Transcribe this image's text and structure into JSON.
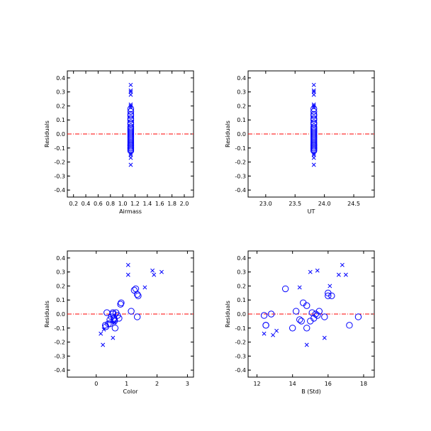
{
  "chart_data": [
    {
      "type": "scatter",
      "xlabel": "Airmass",
      "ylabel": "Residuals",
      "xlim": [
        0.1,
        2.15
      ],
      "ylim": [
        -0.45,
        0.45
      ],
      "xticks": [
        "0.2",
        "0.4",
        "0.6",
        "0.8",
        "1.0",
        "1.2",
        "1.4",
        "1.6",
        "1.8",
        "2.0"
      ],
      "yticks": [
        "0.4",
        "0.3",
        "0.2",
        "0.1",
        "0.0",
        "-0.1",
        "-0.2",
        "-0.3",
        "-0.4"
      ],
      "reference_line": {
        "y": 0.0,
        "color": "#ff0000",
        "style": "dash-dot"
      },
      "series": [
        {
          "marker": "circle",
          "x": [
            1.13,
            1.13,
            1.13,
            1.13,
            1.13,
            1.13,
            1.13,
            1.13,
            1.13,
            1.13,
            1.13,
            1.13,
            1.13,
            1.13,
            1.13,
            1.13,
            1.13,
            1.13,
            1.13,
            1.13,
            1.13,
            1.13,
            1.13,
            1.13,
            1.13,
            1.13,
            1.13,
            1.13
          ],
          "y": [
            0.18,
            0.16,
            0.14,
            0.13,
            0.1,
            0.08,
            0.07,
            0.03,
            0.02,
            0.01,
            0.0,
            -0.01,
            -0.02,
            -0.03,
            -0.04,
            -0.05,
            -0.07,
            -0.08,
            -0.08,
            -0.09,
            -0.1,
            -0.1,
            -0.11,
            -0.12,
            0.05,
            0.04,
            -0.06,
            0.11
          ]
        },
        {
          "marker": "cross",
          "x": [
            1.13,
            1.13,
            1.13,
            1.13,
            1.13,
            1.13,
            1.13,
            1.13,
            1.13,
            1.13,
            1.13
          ],
          "y": [
            0.35,
            0.31,
            0.3,
            0.28,
            0.21,
            0.19,
            -0.14,
            -0.15,
            -0.17,
            -0.22,
            0.2
          ]
        }
      ]
    },
    {
      "type": "scatter",
      "xlabel": "UT",
      "ylabel": "Residuals",
      "xlim": [
        22.7,
        24.85
      ],
      "ylim": [
        -0.45,
        0.45
      ],
      "xticks": [
        "23.0",
        "23.5",
        "24.0",
        "24.5"
      ],
      "yticks": [
        "0.4",
        "0.3",
        "0.2",
        "0.1",
        "0.0",
        "-0.1",
        "-0.2",
        "-0.3",
        "-0.4"
      ],
      "reference_line": {
        "y": 0.0,
        "color": "#ff0000",
        "style": "dash-dot"
      },
      "series": [
        {
          "marker": "circle",
          "x": [
            23.82,
            23.82,
            23.82,
            23.82,
            23.82,
            23.82,
            23.82,
            23.82,
            23.82,
            23.82,
            23.82,
            23.82,
            23.82,
            23.82,
            23.82,
            23.82,
            23.82,
            23.82,
            23.82,
            23.82,
            23.82,
            23.82,
            23.82,
            23.82,
            23.82,
            23.82,
            23.82,
            23.82
          ],
          "y": [
            0.18,
            0.16,
            0.14,
            0.13,
            0.1,
            0.08,
            0.07,
            0.03,
            0.02,
            0.01,
            0.0,
            -0.01,
            -0.02,
            -0.03,
            -0.04,
            -0.05,
            -0.07,
            -0.08,
            -0.08,
            -0.09,
            -0.1,
            -0.1,
            -0.11,
            -0.12,
            0.05,
            0.04,
            -0.06,
            0.11
          ]
        },
        {
          "marker": "cross",
          "x": [
            23.82,
            23.82,
            23.82,
            23.82,
            23.82,
            23.82,
            23.82,
            23.82,
            23.82,
            23.82,
            23.82
          ],
          "y": [
            0.35,
            0.31,
            0.3,
            0.28,
            0.21,
            0.19,
            -0.14,
            -0.15,
            -0.17,
            -0.22,
            0.2
          ]
        }
      ]
    },
    {
      "type": "scatter",
      "xlabel": "Color",
      "ylabel": "Residuals",
      "xlim": [
        -0.95,
        3.2
      ],
      "ylim": [
        -0.45,
        0.45
      ],
      "xticks": [
        "0",
        "1",
        "2",
        "3"
      ],
      "yticks": [
        "0.4",
        "0.3",
        "0.2",
        "0.1",
        "0.0",
        "-0.1",
        "-0.2",
        "-0.3",
        "-0.4"
      ],
      "reference_line": {
        "y": 0.0,
        "color": "#ff0000",
        "style": "dash-dot"
      },
      "series": [
        {
          "marker": "circle",
          "x": [
            0.35,
            0.3,
            0.32,
            0.4,
            0.45,
            0.5,
            0.55,
            0.58,
            0.6,
            0.62,
            0.65,
            0.7,
            0.75,
            0.8,
            0.82,
            1.15,
            1.25,
            1.3,
            1.35,
            1.38,
            1.35,
            0.55,
            0.45,
            0.6
          ],
          "y": [
            0.01,
            -0.08,
            -0.09,
            -0.07,
            -0.04,
            -0.02,
            0.0,
            -0.03,
            -0.05,
            -0.1,
            0.01,
            -0.01,
            -0.03,
            0.07,
            0.08,
            0.02,
            0.17,
            0.18,
            0.14,
            0.13,
            -0.02,
            0.01,
            -0.07,
            -0.04
          ]
        },
        {
          "marker": "cross",
          "x": [
            0.15,
            0.22,
            0.25,
            0.55,
            0.6,
            1.05,
            1.05,
            1.6,
            1.85,
            1.9,
            2.15
          ],
          "y": [
            -0.14,
            -0.22,
            -0.11,
            -0.17,
            -0.06,
            0.35,
            0.28,
            0.19,
            0.31,
            0.28,
            0.3
          ]
        }
      ]
    },
    {
      "type": "scatter",
      "xlabel": "B (Std)",
      "ylabel": "Residuals",
      "xlim": [
        11.5,
        18.6
      ],
      "ylim": [
        -0.45,
        0.45
      ],
      "xticks": [
        "12",
        "14",
        "16",
        "18"
      ],
      "yticks": [
        "0.4",
        "0.3",
        "0.2",
        "0.1",
        "0.0",
        "-0.1",
        "-0.2",
        "-0.3",
        "-0.4"
      ],
      "reference_line": {
        "y": 0.0,
        "color": "#ff0000",
        "style": "dash-dot"
      },
      "series": [
        {
          "marker": "circle",
          "x": [
            12.4,
            12.5,
            12.5,
            12.8,
            13.6,
            14.0,
            14.2,
            14.4,
            14.5,
            14.6,
            14.8,
            14.8,
            15.0,
            15.1,
            15.2,
            15.3,
            15.4,
            15.5,
            15.8,
            16.0,
            16.2,
            16.0,
            17.2,
            17.7
          ],
          "y": [
            -0.01,
            -0.08,
            -0.08,
            0.0,
            0.18,
            -0.1,
            0.02,
            -0.04,
            -0.05,
            0.08,
            0.06,
            -0.1,
            -0.05,
            0.01,
            -0.03,
            0.0,
            -0.01,
            0.02,
            -0.02,
            0.15,
            0.13,
            0.13,
            -0.08,
            -0.02
          ]
        },
        {
          "marker": "cross",
          "x": [
            12.4,
            12.9,
            13.1,
            14.4,
            14.8,
            15.0,
            15.4,
            15.8,
            16.1,
            16.6,
            16.8,
            17.0
          ],
          "y": [
            -0.14,
            -0.15,
            -0.12,
            0.19,
            -0.22,
            0.3,
            0.31,
            -0.17,
            0.2,
            0.28,
            0.35,
            0.28
          ]
        }
      ]
    }
  ]
}
